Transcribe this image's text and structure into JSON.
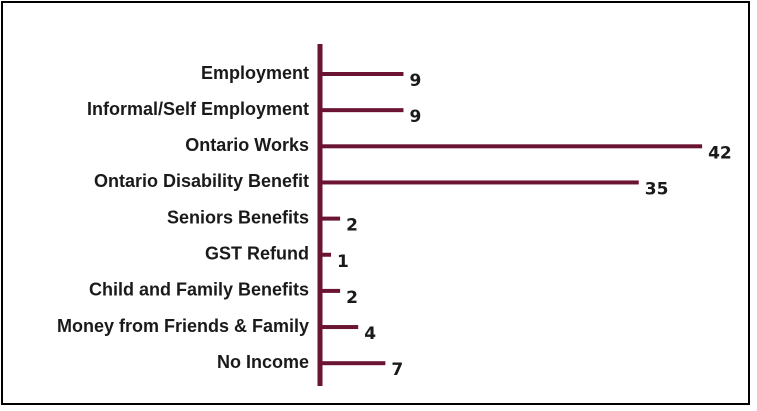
{
  "chart_data": {
    "type": "bar",
    "orientation": "horizontal",
    "categories": [
      "Employment",
      "Informal/Self Employment",
      "Ontario Works",
      "Ontario Disability Benefit",
      "Seniors Benefits",
      "GST Refund",
      "Child and Family Benefits",
      "Money from Friends & Family",
      "No Income"
    ],
    "values": [
      9,
      9,
      42,
      35,
      2,
      1,
      2,
      4,
      7
    ],
    "title": "",
    "xlabel": "",
    "ylabel": "",
    "xlim": [
      0,
      42
    ],
    "grid": false,
    "legend": "none",
    "bar_color": "#6b1333",
    "data_labels": true
  }
}
